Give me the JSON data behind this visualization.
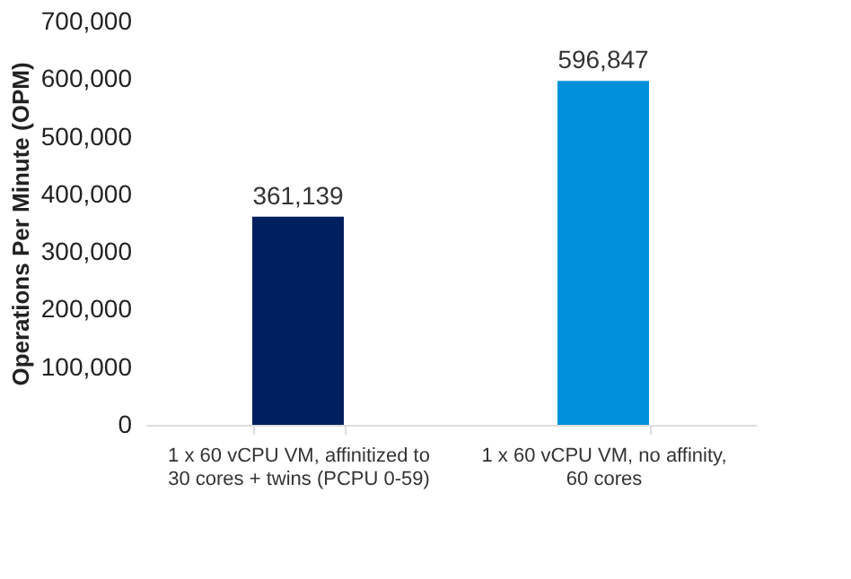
{
  "chart_data": {
    "type": "bar",
    "ylabel": "Operations Per Minute (OPM)",
    "categories": [
      "1 x 60 vCPU VM, affinitized to 30 cores + twins (PCPU 0-59)",
      "1 x 60 vCPU VM, no affinity, 60 cores"
    ],
    "values": [
      361139,
      596847
    ],
    "value_labels": [
      "361,139",
      "596,847"
    ],
    "colors": [
      "#001f5e",
      "#0091da"
    ],
    "ylim": [
      0,
      700000
    ],
    "yticks": [
      0,
      {
        "value": 100000,
        "label": "100,000"
      },
      {
        "value": 200000,
        "label": "200,000"
      },
      {
        "value": 300000,
        "label": "300,000"
      },
      {
        "value": 400000,
        "label": "400,000"
      },
      {
        "value": 500000,
        "label": "500,000"
      },
      {
        "value": 600000,
        "label": "600,000"
      },
      {
        "value": 700000,
        "label": "700,000"
      }
    ],
    "grid": false
  }
}
